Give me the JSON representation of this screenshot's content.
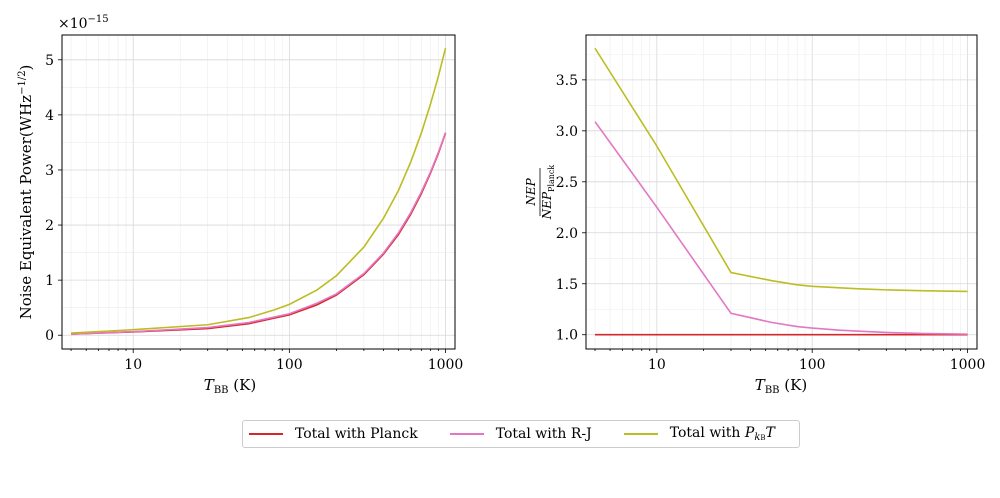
{
  "chart_data": [
    {
      "type": "line",
      "xscale": "log",
      "xlim": [
        3.5,
        1150
      ],
      "ylim": [
        -0.25,
        5.45
      ],
      "xlabel": "T_BB (K)",
      "ylabel": "Noise Equivalent Power(WHz^{-1/2})",
      "y_offset_text": "×10^{−15}",
      "xticks": [
        10,
        100,
        1000
      ],
      "xtick_labels": [
        "10",
        "100",
        "1000"
      ],
      "yticks": [
        0,
        1,
        2,
        3,
        4,
        5
      ],
      "ytick_labels": [
        "0",
        "1",
        "2",
        "3",
        "4",
        "5"
      ],
      "grid": true,
      "x": [
        4,
        10,
        30,
        55,
        80,
        100,
        150,
        200,
        300,
        400,
        500,
        600,
        700,
        800,
        900,
        1000
      ],
      "series": [
        {
          "name": "Total with Planck",
          "color": "#d62728",
          "values": [
            0.02,
            0.06,
            0.12,
            0.21,
            0.31,
            0.37,
            0.55,
            0.73,
            1.1,
            1.47,
            1.83,
            2.2,
            2.57,
            2.94,
            3.3,
            3.67
          ]
        },
        {
          "name": "Total with R-J",
          "color": "#e377c2",
          "values": [
            0.02,
            0.065,
            0.14,
            0.23,
            0.33,
            0.39,
            0.58,
            0.75,
            1.12,
            1.49,
            1.86,
            2.23,
            2.6,
            2.96,
            3.32,
            3.68
          ]
        },
        {
          "name": "Total with P_{k_B T}",
          "color": "#bcbd22",
          "values": [
            0.04,
            0.1,
            0.19,
            0.32,
            0.46,
            0.56,
            0.82,
            1.08,
            1.6,
            2.12,
            2.63,
            3.15,
            3.67,
            4.19,
            4.7,
            5.21
          ]
        }
      ]
    },
    {
      "type": "line",
      "xscale": "log",
      "xlim": [
        3.5,
        1150
      ],
      "ylim": [
        0.86,
        3.94
      ],
      "xlabel": "T_BB (K)",
      "ylabel": "NEP / NEP_Planck",
      "xticks": [
        10,
        100,
        1000
      ],
      "xtick_labels": [
        "10",
        "100",
        "1000"
      ],
      "yticks": [
        1.0,
        1.5,
        2.0,
        2.5,
        3.0,
        3.5
      ],
      "ytick_labels": [
        "1.0",
        "1.5",
        "2.0",
        "2.5",
        "3.0",
        "3.5"
      ],
      "grid": true,
      "x": [
        4,
        10,
        30,
        55,
        80,
        100,
        150,
        200,
        300,
        500,
        700,
        1000
      ],
      "series": [
        {
          "name": "Total with Planck",
          "color": "#d62728",
          "values": [
            1.0,
            1.0,
            1.0,
            1.0,
            1.0,
            1.0,
            1.0,
            1.0,
            1.0,
            1.0,
            1.0,
            1.0
          ]
        },
        {
          "name": "Total with R-J",
          "color": "#e377c2",
          "values": [
            3.09,
            2.25,
            1.21,
            1.12,
            1.08,
            1.065,
            1.045,
            1.035,
            1.022,
            1.013,
            1.009,
            1.006
          ]
        },
        {
          "name": "Total with P_{k_B T}",
          "color": "#bcbd22",
          "values": [
            3.81,
            2.85,
            1.61,
            1.53,
            1.49,
            1.475,
            1.46,
            1.45,
            1.44,
            1.432,
            1.428,
            1.425
          ]
        }
      ]
    }
  ],
  "legend": {
    "items": [
      {
        "label": "Total with Planck",
        "color": "#d62728"
      },
      {
        "label": "Total with R-J",
        "color": "#e377c2"
      },
      {
        "label_prefix": "Total with ",
        "color": "#bcbd22"
      }
    ]
  }
}
